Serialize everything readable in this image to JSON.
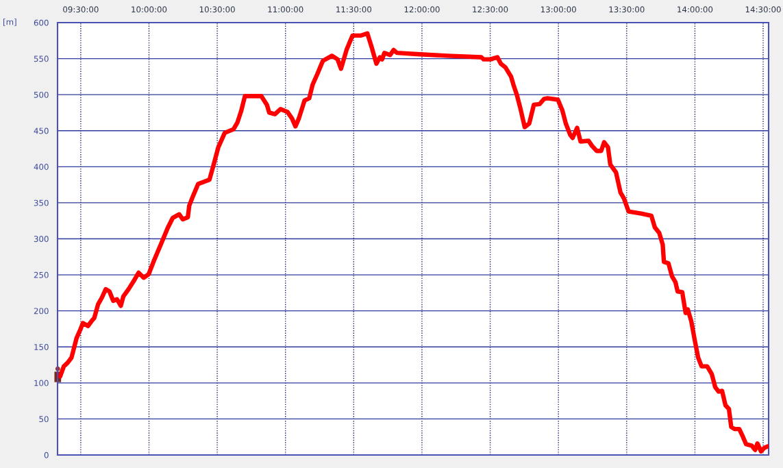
{
  "chart_data": {
    "type": "line",
    "ylabel": "[m]",
    "x": [
      9.349,
      9.376,
      9.404,
      9.432,
      9.45,
      9.469,
      9.497,
      9.516,
      9.553,
      9.58,
      9.599,
      9.627,
      9.654,
      9.683,
      9.71,
      9.738,
      9.766,
      9.794,
      9.812,
      9.85,
      9.887,
      9.924,
      9.961,
      9.998,
      10.035,
      10.091,
      10.137,
      10.174,
      10.221,
      10.248,
      10.285,
      10.295,
      10.322,
      10.36,
      10.443,
      10.471,
      10.508,
      10.555,
      10.619,
      10.647,
      10.675,
      10.703,
      10.823,
      10.864,
      10.881,
      10.923,
      10.964,
      11.015,
      11.048,
      11.073,
      11.098,
      11.14,
      11.174,
      11.199,
      11.232,
      11.274,
      11.341,
      11.382,
      11.407,
      11.449,
      11.491,
      11.55,
      11.6,
      11.633,
      11.666,
      11.692,
      11.708,
      11.725,
      11.767,
      11.792,
      11.817,
      11.984,
      12.185,
      12.435,
      12.452,
      12.502,
      12.553,
      12.578,
      12.611,
      12.653,
      12.67,
      12.695,
      12.72,
      12.753,
      12.786,
      12.82,
      12.862,
      12.895,
      12.92,
      12.996,
      13.029,
      13.054,
      13.087,
      13.104,
      13.137,
      13.162,
      13.221,
      13.246,
      13.28,
      13.313,
      13.335,
      13.363,
      13.38,
      13.422,
      13.455,
      13.48,
      13.514,
      13.606,
      13.681,
      13.706,
      13.739,
      13.764,
      13.773,
      13.806,
      13.832,
      13.857,
      13.873,
      13.907,
      13.932,
      13.948,
      13.973,
      13.999,
      14.024,
      14.049,
      14.09,
      14.124,
      14.149,
      14.174,
      14.199,
      14.224,
      14.249,
      14.266,
      14.291,
      14.325,
      14.35,
      14.375,
      14.416,
      14.441,
      14.458,
      14.484,
      14.509,
      14.534
    ],
    "series": [
      {
        "color": "#ff0000",
        "values": [
          109,
          123,
          128,
          135,
          148,
          162,
          174,
          183,
          179,
          186,
          190,
          209,
          218,
          230,
          227,
          214,
          216,
          207,
          220,
          230,
          241,
          253,
          246,
          251,
          269,
          294,
          315,
          329,
          334,
          327,
          330,
          346,
          359,
          376,
          382,
          401,
          427,
          447,
          452,
          461,
          477,
          498,
          498,
          486,
          475,
          473,
          480,
          476,
          467,
          456,
          467,
          492,
          495,
          514,
          528,
          547,
          554,
          549,
          536,
          563,
          582,
          582,
          585,
          565,
          543,
          552,
          549,
          558,
          555,
          562,
          558,
          556,
          554,
          552,
          549,
          549,
          552,
          543,
          538,
          525,
          514,
          500,
          482,
          455,
          460,
          486,
          487,
          494,
          495,
          493,
          478,
          460,
          444,
          440,
          454,
          435,
          436,
          429,
          422,
          422,
          434,
          427,
          403,
          392,
          364,
          356,
          338,
          335,
          332,
          316,
          308,
          292,
          268,
          266,
          248,
          240,
          227,
          226,
          197,
          202,
          186,
          159,
          135,
          123,
          123,
          112,
          94,
          88,
          89,
          69,
          64,
          39,
          36,
          36,
          26,
          15,
          13,
          7,
          16,
          5,
          10,
          12
        ]
      }
    ],
    "xlim": [
      9.33,
      14.54
    ],
    "xticks": [
      {
        "value": 9.5,
        "label": "09:30:00"
      },
      {
        "value": 10.0,
        "label": "10:00:00"
      },
      {
        "value": 10.5,
        "label": "10:30:00"
      },
      {
        "value": 11.0,
        "label": "11:00:00"
      },
      {
        "value": 11.5,
        "label": "11:30:00"
      },
      {
        "value": 12.0,
        "label": "12:00:00"
      },
      {
        "value": 12.5,
        "label": "12:30:00"
      },
      {
        "value": 13.0,
        "label": "13:00:00"
      },
      {
        "value": 13.5,
        "label": "13:30:00"
      },
      {
        "value": 14.0,
        "label": "14:00:00"
      },
      {
        "value": 14.5,
        "label": "14:30:00"
      }
    ],
    "ylim": [
      0,
      600
    ],
    "yticks": [
      0,
      50,
      100,
      150,
      200,
      250,
      300,
      350,
      400,
      450,
      500,
      550,
      600
    ],
    "grid": true,
    "line_style": "solid"
  }
}
